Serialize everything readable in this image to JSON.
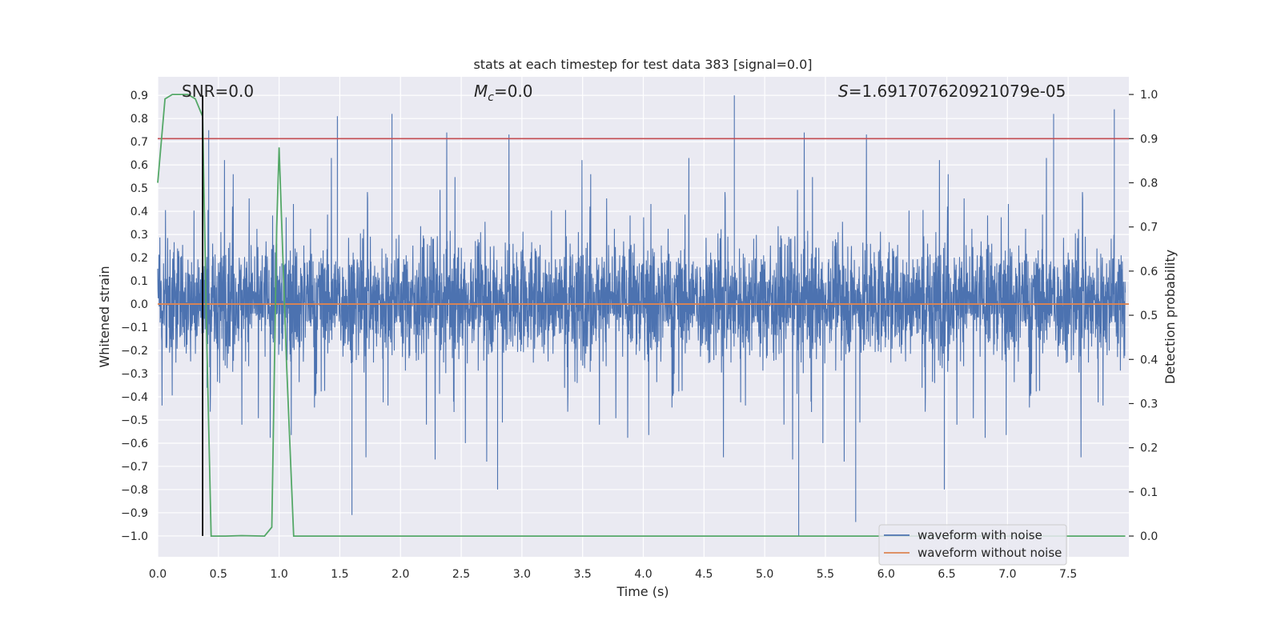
{
  "chart_data": {
    "type": "line",
    "title": "stats at each timestep for test data 383 [signal=0.0]",
    "xlabel": "Time (s)",
    "ylabel": "Whitened strain",
    "y2label": "Detection probability",
    "xlim": [
      0.0,
      8.0
    ],
    "ylim": [
      -1.09,
      0.98
    ],
    "y2lim": [
      -0.047,
      1.04
    ],
    "x_ticks": [
      0.0,
      0.5,
      1.0,
      1.5,
      2.0,
      2.5,
      3.0,
      3.5,
      4.0,
      4.5,
      5.0,
      5.5,
      6.0,
      6.5,
      7.0,
      7.5
    ],
    "x_tick_labels": [
      "0.0",
      "0.5",
      "1.0",
      "1.5",
      "2.0",
      "2.5",
      "3.0",
      "3.5",
      "4.0",
      "4.5",
      "5.0",
      "5.5",
      "6.0",
      "6.5",
      "7.0",
      "7.5"
    ],
    "y_ticks": [
      0.9,
      0.8,
      0.7,
      0.6,
      0.5,
      0.4,
      0.3,
      0.2,
      0.1,
      0.0,
      -0.1,
      -0.2,
      -0.3,
      -0.4,
      -0.5,
      -0.6,
      -0.7,
      -0.8,
      -0.9,
      -1.0
    ],
    "y_tick_labels": [
      "0.9",
      "0.8",
      "0.7",
      "0.6",
      "0.5",
      "0.4",
      "0.3",
      "0.2",
      "0.1",
      "0.0",
      "−0.1",
      "−0.2",
      "−0.3",
      "−0.4",
      "−0.5",
      "−0.6",
      "−0.7",
      "−0.8",
      "−0.9",
      "−1.0"
    ],
    "y2_ticks": [
      1.0,
      0.9,
      0.8,
      0.7,
      0.6,
      0.5,
      0.4,
      0.3,
      0.2,
      0.1,
      0.0
    ],
    "y2_tick_labels": [
      "1.0",
      "0.9",
      "0.8",
      "0.7",
      "0.6",
      "0.5",
      "0.4",
      "0.3",
      "0.2",
      "0.1",
      "0.0"
    ],
    "annotations": {
      "snr": "SNR=0.0",
      "mc_symbol": "M",
      "mc_sub": "c",
      "mc_value": "=0.0",
      "s_symbol": "S",
      "s_value": "=1.691707620921079e-05"
    },
    "legend": {
      "location": "lower right",
      "entries": [
        {
          "label": "waveform with noise",
          "color": "#4c72b0"
        },
        {
          "label": "waveform without noise",
          "color": "#dd8452"
        }
      ]
    },
    "series": [
      {
        "name": "waveform with noise",
        "color": "#4c72b0",
        "axis": "left",
        "kind": "noise",
        "approx_band": [
          -0.28,
          0.33
        ],
        "notable_peaks": [
          {
            "x": 0.42,
            "y": 0.75
          },
          {
            "x": 1.48,
            "y": 0.81
          },
          {
            "x": 1.93,
            "y": 0.82
          },
          {
            "x": 4.75,
            "y": 0.9
          },
          {
            "x": 7.38,
            "y": 0.82
          },
          {
            "x": 7.88,
            "y": 0.84
          }
        ],
        "notable_troughs": [
          {
            "x": 1.6,
            "y": -0.91
          },
          {
            "x": 2.8,
            "y": -0.8
          },
          {
            "x": 5.28,
            "y": -1.0
          },
          {
            "x": 5.75,
            "y": -0.94
          },
          {
            "x": 6.48,
            "y": -0.8
          }
        ]
      },
      {
        "name": "waveform without noise",
        "color": "#dd8452",
        "axis": "left",
        "x": [
          0.0,
          8.0
        ],
        "y": [
          0.0,
          0.0
        ]
      },
      {
        "name": "detection probability",
        "color": "#55a868",
        "axis": "right",
        "x": [
          0.0,
          0.06,
          0.12,
          0.25,
          0.31,
          0.37,
          0.4,
          0.44,
          0.56,
          0.69,
          0.88,
          0.94,
          0.98,
          1.0,
          1.06,
          1.12,
          1.5,
          7.97
        ],
        "y": [
          0.8,
          0.99,
          1.0,
          1.0,
          0.99,
          0.95,
          0.5,
          0.0,
          0.0,
          0.001,
          0.0,
          0.02,
          0.7,
          0.88,
          0.4,
          0.0,
          0.0,
          0.0
        ]
      },
      {
        "name": "threshold",
        "color": "#c44e52",
        "axis": "right",
        "x": [
          0.0,
          8.0
        ],
        "y": [
          0.9,
          0.9
        ]
      }
    ],
    "vertical_line": {
      "x": 0.37,
      "y_from": -1.0,
      "y_to": 0.9,
      "color": "#000000"
    }
  }
}
